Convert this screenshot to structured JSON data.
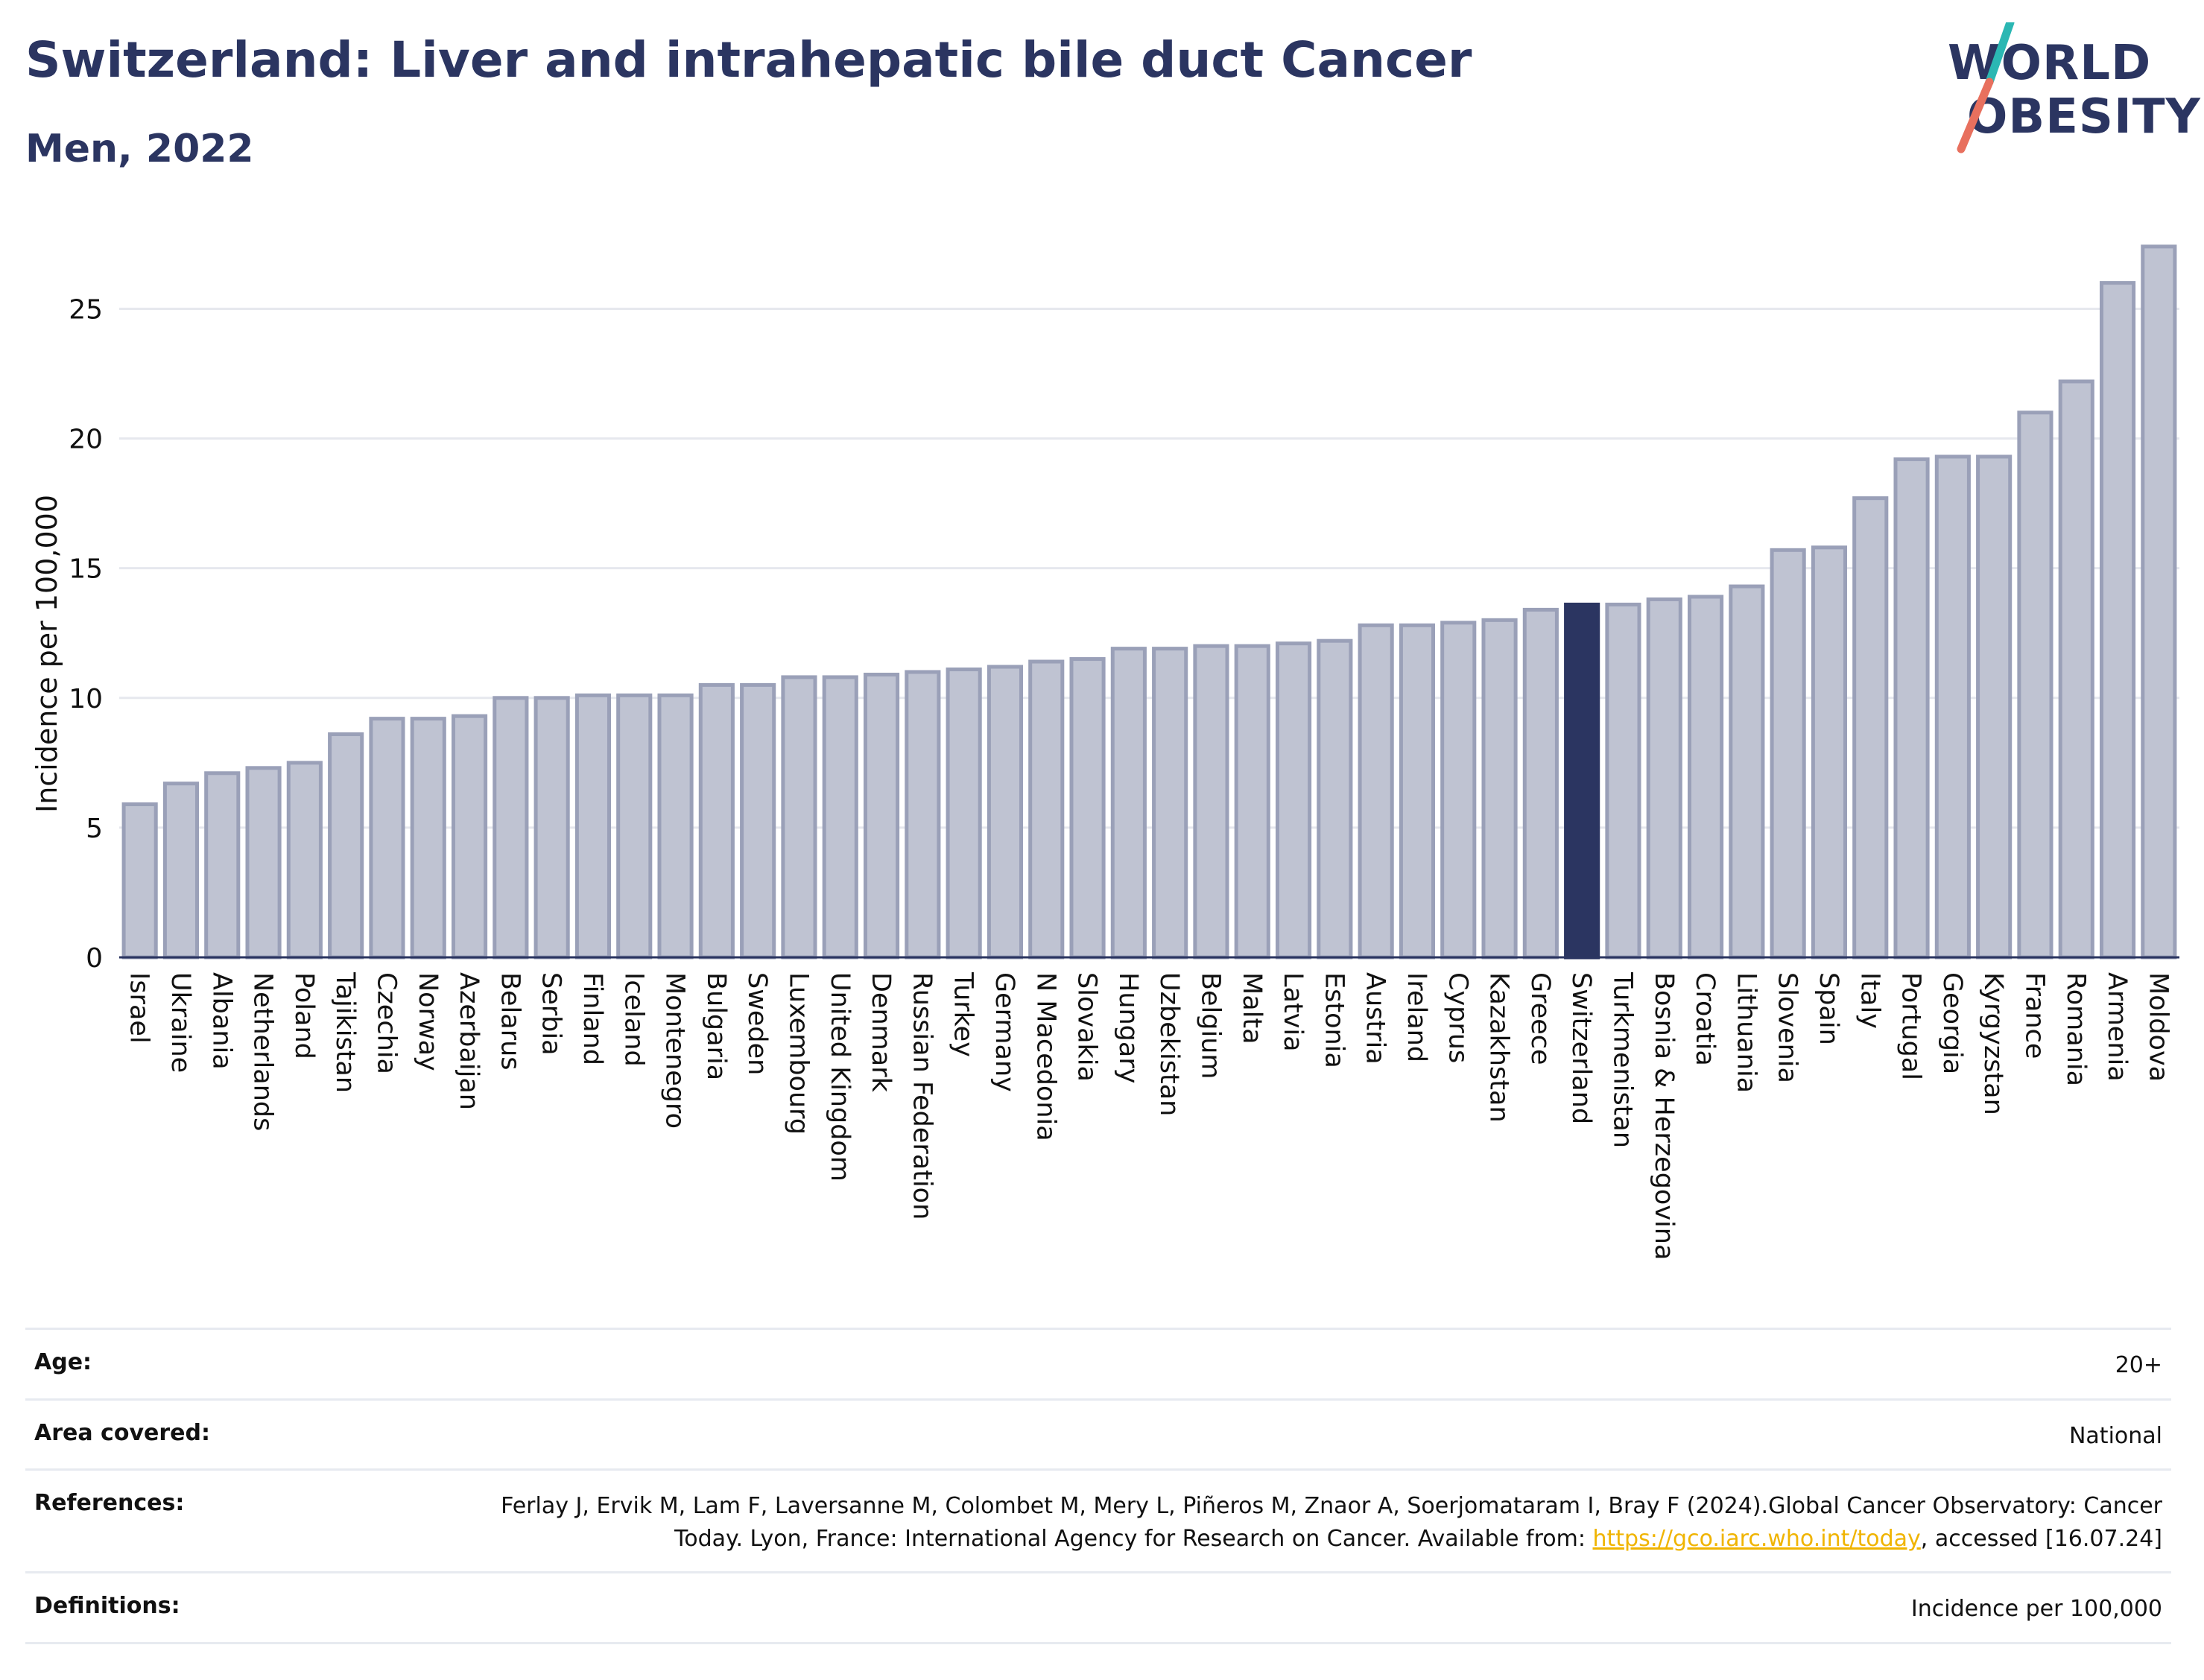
{
  "header": {
    "title": "Switzerland: Liver and intrahepatic bile duct Cancer",
    "subtitle": "Men, 2022"
  },
  "logo": {
    "line1": "WORLD",
    "line2": "OBESITY",
    "stroke_colors": [
      "#2bb7b3",
      "#e8705e"
    ]
  },
  "colors": {
    "bar": "#bfc3d2",
    "bar_border": "#9aa0b8",
    "highlight": "#2b3561",
    "grid": "#e6e8ee",
    "link": "#f0b400"
  },
  "chart_data": {
    "type": "bar",
    "ylabel": "Incidence per 100,000",
    "ylim": [
      0,
      28
    ],
    "yticks": [
      0,
      5,
      10,
      15,
      20,
      25
    ],
    "grid": true,
    "highlight": "Switzerland",
    "categories": [
      "Israel",
      "Ukraine",
      "Albania",
      "Netherlands",
      "Poland",
      "Tajikistan",
      "Czechia",
      "Norway",
      "Azerbaijan",
      "Belarus",
      "Serbia",
      "Finland",
      "Iceland",
      "Montenegro",
      "Bulgaria",
      "Sweden",
      "Luxembourg",
      "United Kingdom",
      "Denmark",
      "Russian Federation",
      "Turkey",
      "Germany",
      "N Macedonia",
      "Slovakia",
      "Hungary",
      "Uzbekistan",
      "Belgium",
      "Malta",
      "Latvia",
      "Estonia",
      "Austria",
      "Ireland",
      "Cyprus",
      "Kazakhstan",
      "Greece",
      "Switzerland",
      "Turkmenistan",
      "Bosnia & Herzegovina",
      "Croatia",
      "Lithuania",
      "Slovenia",
      "Spain",
      "Italy",
      "Portugal",
      "Georgia",
      "Kyrgyzstan",
      "France",
      "Romania",
      "Armenia",
      "Moldova"
    ],
    "values": [
      5.9,
      6.7,
      7.1,
      7.3,
      7.5,
      8.6,
      9.2,
      9.2,
      9.3,
      10.0,
      10.0,
      10.1,
      10.1,
      10.1,
      10.5,
      10.5,
      10.8,
      10.8,
      10.9,
      11.0,
      11.1,
      11.2,
      11.4,
      11.5,
      11.9,
      11.9,
      12.0,
      12.0,
      12.1,
      12.2,
      12.8,
      12.8,
      12.9,
      13.0,
      13.4,
      13.6,
      13.6,
      13.8,
      13.9,
      14.3,
      15.7,
      15.8,
      17.7,
      19.2,
      19.3,
      19.3,
      21.0,
      22.2,
      26.0,
      27.4
    ]
  },
  "info": {
    "age_label": "Age:",
    "age_value": "20+",
    "area_label": "Area covered:",
    "area_value": "National",
    "references_label": "References:",
    "references_text_1": "Ferlay J, Ervik M, Lam F, Laversanne M, Colombet M, Mery L, Piñeros M, Znaor A, Soerjomataram I, Bray F (2024).Global Cancer Observatory: Cancer Today. Lyon, France: International Agency for Research on Cancer. Available from: ",
    "references_link": "https://gco.iarc.who.int/today",
    "references_text_2": ", accessed [16.07.24]",
    "definitions_label": "Definitions:",
    "definitions_value": "Incidence per 100,000"
  }
}
